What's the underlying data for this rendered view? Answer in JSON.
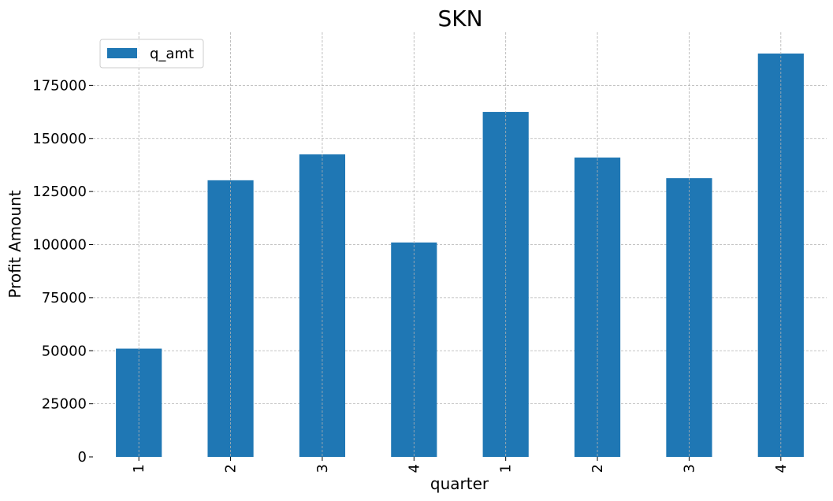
{
  "chart_data": {
    "type": "bar",
    "title": "SKN",
    "xlabel": "quarter",
    "ylabel": "Profit Amount",
    "categories": [
      "1",
      "2",
      "3",
      "4",
      "1",
      "2",
      "3",
      "4"
    ],
    "series": [
      {
        "name": "q_amt",
        "color": "#1f77b4",
        "values": [
          51000,
          130300,
          142500,
          101000,
          162500,
          141000,
          131300,
          190000
        ]
      }
    ],
    "ylim": [
      0,
      200000
    ],
    "yticks": [
      0,
      25000,
      50000,
      75000,
      100000,
      125000,
      150000,
      175000
    ],
    "ytick_labels": [
      "0",
      "25000",
      "50000",
      "75000",
      "100000",
      "125000",
      "150000",
      "175000"
    ],
    "grid": true,
    "legend_position": "top-left"
  }
}
